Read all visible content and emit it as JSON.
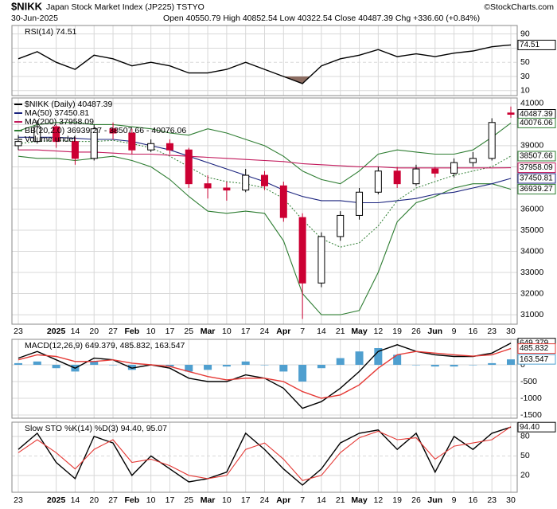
{
  "header": {
    "symbol": "$NIKK",
    "name": "Japan Stock Market Index (JP225) TSTYO",
    "date": "30-Jun-2025",
    "quote": "Open 40550.79 High 40852.54 Low 40322.54 Close 40487.39 Chg +336.60 (+0.84%)",
    "credit": "©StockCharts.com"
  },
  "chart_data": [
    {
      "type": "line",
      "ylim": [
        3,
        102
      ],
      "yticks": [
        10,
        30,
        50,
        70,
        90
      ],
      "grid": true,
      "series": [
        {
          "name": "RSI(14) 74.51",
          "color": "#000000",
          "tag": true,
          "values": [
            55,
            65,
            50,
            40,
            60,
            55,
            45,
            50,
            45,
            35,
            35,
            40,
            50,
            40,
            30,
            20,
            45,
            55,
            60,
            68,
            58,
            62,
            58,
            63,
            66,
            72,
            74.51
          ]
        }
      ]
    },
    {
      "type": "candlestick",
      "ylim": [
        30550,
        41260
      ],
      "yticks": [
        31000,
        32000,
        33000,
        34000,
        35000,
        36000,
        37000,
        38000,
        39000,
        40000,
        41000
      ],
      "grid": true,
      "categories": [
        "23",
        null,
        "2025",
        "14",
        "20",
        "27",
        "Feb",
        "10",
        "17",
        "25",
        "Mar",
        "10",
        "17",
        "24",
        "Apr",
        "7",
        "14",
        "21",
        "May",
        "12",
        "19",
        "26",
        "Jun",
        "9",
        "16",
        "23",
        "30"
      ],
      "candles": {
        "name": "$NIKK (Daily) 40487.39",
        "up_color": "#000000",
        "down_color": "#cc0033",
        "open": [
          39000,
          39200,
          39900,
          39200,
          38400,
          39800,
          39600,
          38800,
          39100,
          38800,
          37200,
          37000,
          36900,
          37600,
          37100,
          35600,
          32500,
          34700,
          35700,
          36800,
          37800,
          37200,
          37900,
          37700,
          38200,
          38400,
          40550.79
        ],
        "high": [
          39500,
          40200,
          40000,
          39400,
          40000,
          40100,
          39800,
          39300,
          39300,
          38900,
          37600,
          37300,
          37900,
          37800,
          37300,
          35800,
          34900,
          35900,
          37000,
          38000,
          38000,
          38100,
          38000,
          38400,
          38700,
          40300,
          40852.54
        ],
        "low": [
          38800,
          39100,
          38900,
          38100,
          38300,
          39300,
          38600,
          38700,
          38600,
          37000,
          36500,
          36400,
          36800,
          36900,
          35400,
          30800,
          32300,
          34500,
          35500,
          36700,
          37000,
          37100,
          37500,
          37500,
          38000,
          38300,
          40322.54
        ],
        "close": [
          39200,
          39900,
          39200,
          38400,
          39800,
          39600,
          38800,
          39100,
          38800,
          37200,
          37000,
          36900,
          37600,
          37100,
          35600,
          32500,
          34700,
          35700,
          36800,
          37800,
          37200,
          37900,
          37700,
          38200,
          38400,
          40100,
          40487.39
        ]
      },
      "series": [
        {
          "name": "MA(50) 37450.81",
          "color": "#1a237e",
          "tag": true,
          "values": [
            39400,
            39400,
            39400,
            39350,
            39300,
            39300,
            39200,
            39000,
            38800,
            38500,
            38200,
            37900,
            37600,
            37300,
            36900,
            36600,
            36400,
            36400,
            36300,
            36300,
            36400,
            36500,
            36700,
            36800,
            37000,
            37200,
            37450.81
          ]
        },
        {
          "name": "MA(200) 37958.09",
          "color": "#c2185b",
          "tag": true,
          "values": [
            38800,
            38800,
            38750,
            38700,
            38700,
            38650,
            38600,
            38600,
            38550,
            38500,
            38450,
            38400,
            38350,
            38300,
            38250,
            38150,
            38100,
            38050,
            38000,
            38000,
            37950,
            37950,
            37950,
            37950,
            37950,
            37950,
            37958.09
          ]
        }
      ],
      "bands": {
        "name": "BB(20,2.0) 36939.27 - 38507.66 - 40076.06",
        "color": "#2e7d32",
        "upper": [
          39700,
          40000,
          40100,
          40100,
          40000,
          40000,
          39900,
          39800,
          39600,
          39500,
          39800,
          39600,
          39300,
          39000,
          38500,
          37800,
          37400,
          37200,
          37800,
          38600,
          38800,
          38700,
          38600,
          38600,
          38800,
          39400,
          40076.06
        ],
        "middle": [
          39100,
          39200,
          39250,
          39200,
          39200,
          39250,
          39100,
          38900,
          38500,
          38000,
          37500,
          37300,
          37200,
          37000,
          36500,
          35500,
          34600,
          34200,
          34400,
          35200,
          36400,
          37000,
          37300,
          37600,
          37800,
          38000,
          38507.66
        ],
        "lower": [
          38500,
          38400,
          38400,
          38300,
          38400,
          38500,
          38300,
          38000,
          37400,
          36600,
          35900,
          35800,
          35900,
          35800,
          34500,
          32000,
          31000,
          31000,
          31200,
          33000,
          35400,
          36300,
          36600,
          37000,
          37200,
          37200,
          36939.27
        ]
      },
      "volume_legend": "Volume undef"
    },
    {
      "type": "line",
      "legend": "MACD(12,26,9) 649.379, 485.832, 163.547",
      "ylim": [
        -1595,
        762
      ],
      "yticks": [
        0,
        -500,
        -1000,
        -1500
      ],
      "grid": true,
      "series": [
        {
          "color": "#4f9fcf",
          "style": "histogram",
          "tag": true,
          "values": [
            50,
            100,
            -100,
            -200,
            100,
            0,
            -150,
            0,
            -50,
            -200,
            -150,
            -50,
            100,
            0,
            -200,
            -500,
            -100,
            200,
            400,
            500,
            300,
            0,
            -50,
            -50,
            -10,
            50,
            163.547
          ]
        },
        {
          "color": "#000000",
          "tag": true,
          "values": [
            200,
            400,
            150,
            -100,
            200,
            150,
            -100,
            0,
            -100,
            -400,
            -500,
            -500,
            -300,
            -400,
            -700,
            -1300,
            -1100,
            -700,
            -200,
            400,
            600,
            400,
            300,
            250,
            250,
            350,
            649.379
          ]
        },
        {
          "color": "#e53935",
          "tag": true,
          "values": [
            150,
            300,
            250,
            100,
            100,
            150,
            50,
            0,
            -50,
            -200,
            -350,
            -450,
            -400,
            -400,
            -500,
            -800,
            -1000,
            -900,
            -600,
            -100,
            300,
            400,
            350,
            300,
            260,
            300,
            485.832
          ]
        }
      ]
    },
    {
      "type": "line",
      "legend": "Slow STO %K(14) %D(3) 94.40, 95.07",
      "ylim": [
        -6,
        102
      ],
      "yticks": [
        20,
        50,
        80
      ],
      "grid": true,
      "categories": [
        "23",
        null,
        "2025",
        "14",
        "20",
        "27",
        "Feb",
        "10",
        "17",
        "25",
        "Mar",
        "10",
        "17",
        "24",
        "Apr",
        "7",
        "14",
        "21",
        "May",
        "12",
        "19",
        "26",
        "Jun",
        "9",
        "16",
        "23",
        "30"
      ],
      "series": [
        {
          "color": "#000000",
          "tag_label": "94.40",
          "values": [
            60,
            85,
            40,
            15,
            80,
            70,
            20,
            50,
            30,
            10,
            15,
            25,
            85,
            60,
            30,
            5,
            30,
            70,
            85,
            90,
            60,
            85,
            25,
            80,
            60,
            85,
            94.4
          ]
        },
        {
          "color": "#e53935",
          "values": [
            55,
            75,
            55,
            30,
            60,
            75,
            40,
            45,
            35,
            20,
            15,
            20,
            60,
            70,
            45,
            12,
            20,
            55,
            78,
            88,
            75,
            78,
            45,
            65,
            70,
            75,
            95.07
          ]
        }
      ]
    }
  ]
}
